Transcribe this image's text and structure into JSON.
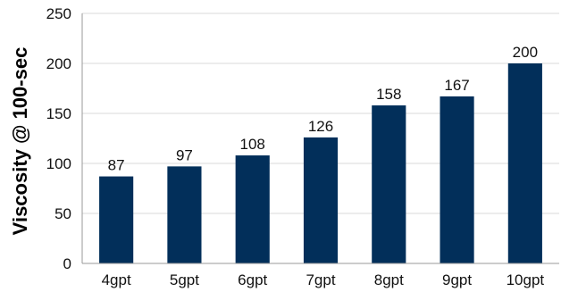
{
  "chart_data": {
    "type": "bar",
    "title": "",
    "xlabel": "",
    "ylabel": "Viscosity @ 100-sec",
    "categories": [
      "4gpt",
      "5gpt",
      "6gpt",
      "7gpt",
      "8gpt",
      "9gpt",
      "10gpt"
    ],
    "values": [
      87,
      97,
      108,
      126,
      158,
      167,
      200
    ],
    "data_labels": [
      "87",
      "97",
      "108",
      "126",
      "158",
      "167",
      "200"
    ],
    "ylim": [
      0,
      250
    ],
    "yticks": [
      0,
      50,
      100,
      150,
      200,
      250
    ],
    "ytick_labels": [
      "0",
      "50",
      "100",
      "150",
      "200",
      "250"
    ],
    "grid": true,
    "legend": "none",
    "colors": {
      "bar": "#022f5a",
      "grid": "#d9d9d9",
      "axis": "#9a9a9a"
    }
  }
}
